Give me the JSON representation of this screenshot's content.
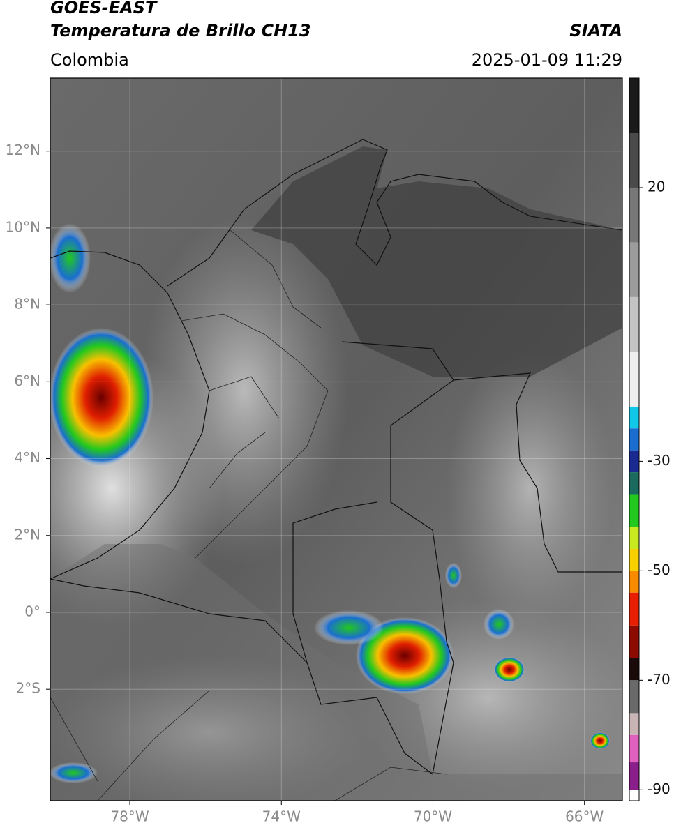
{
  "header": {
    "title": "GOES-EAST",
    "subtitle": "Temperatura de Brillo CH13",
    "region": "Colombia",
    "source": "SIATA",
    "datetime": "2025-01-09 11:29"
  },
  "map": {
    "xlim": [
      -80.1,
      -65
    ],
    "ylim": [
      -4.9,
      13.9
    ],
    "xticks": [
      {
        "value": -78,
        "label": "78°W"
      },
      {
        "value": -74,
        "label": "74°W"
      },
      {
        "value": -70,
        "label": "70°W"
      },
      {
        "value": -66,
        "label": "66°W"
      }
    ],
    "yticks": [
      {
        "value": 12,
        "label": "12°N"
      },
      {
        "value": 10,
        "label": "10°N"
      },
      {
        "value": 8,
        "label": "8°N"
      },
      {
        "value": 6,
        "label": "6°N"
      },
      {
        "value": 4,
        "label": "4°N"
      },
      {
        "value": 2,
        "label": "2°N"
      },
      {
        "value": 0,
        "label": "0°"
      },
      {
        "value": -2,
        "label": "2°S"
      }
    ],
    "grid": true
  },
  "colorbar": {
    "lim": [
      -92,
      40
    ],
    "ticks": [
      20,
      -30,
      -50,
      -70,
      -90
    ],
    "segments": [
      {
        "from": 40,
        "to": 30,
        "color": "#1a1a1a"
      },
      {
        "from": 30,
        "to": 20,
        "color": "#4a4a4a"
      },
      {
        "from": 20,
        "to": 10,
        "color": "#777777"
      },
      {
        "from": 10,
        "to": 0,
        "color": "#9c9c9c"
      },
      {
        "from": 0,
        "to": -10,
        "color": "#c4c4c4"
      },
      {
        "from": -10,
        "to": -20,
        "color": "#eeeeee"
      },
      {
        "from": -20,
        "to": -24,
        "color": "#12c8e8"
      },
      {
        "from": -24,
        "to": -28,
        "color": "#1a6ed0"
      },
      {
        "from": -28,
        "to": -32,
        "color": "#1a2a90"
      },
      {
        "from": -32,
        "to": -36,
        "color": "#1a6a60"
      },
      {
        "from": -36,
        "to": -42,
        "color": "#22c81e"
      },
      {
        "from": -42,
        "to": -46,
        "color": "#c8e820"
      },
      {
        "from": -46,
        "to": -50,
        "color": "#f8d000"
      },
      {
        "from": -50,
        "to": -54,
        "color": "#f88a00"
      },
      {
        "from": -54,
        "to": -60,
        "color": "#e81e00"
      },
      {
        "from": -60,
        "to": -66,
        "color": "#8c0a00"
      },
      {
        "from": -66,
        "to": -70,
        "color": "#1a0a0a"
      },
      {
        "from": -70,
        "to": -76,
        "color": "#6a6a6a"
      },
      {
        "from": -76,
        "to": -80,
        "color": "#c8b4b4"
      },
      {
        "from": -80,
        "to": -85,
        "color": "#e060c0"
      },
      {
        "from": -85,
        "to": -90,
        "color": "#8a1e8a"
      },
      {
        "from": -90,
        "to": -92,
        "color": "#ffffff"
      }
    ]
  }
}
